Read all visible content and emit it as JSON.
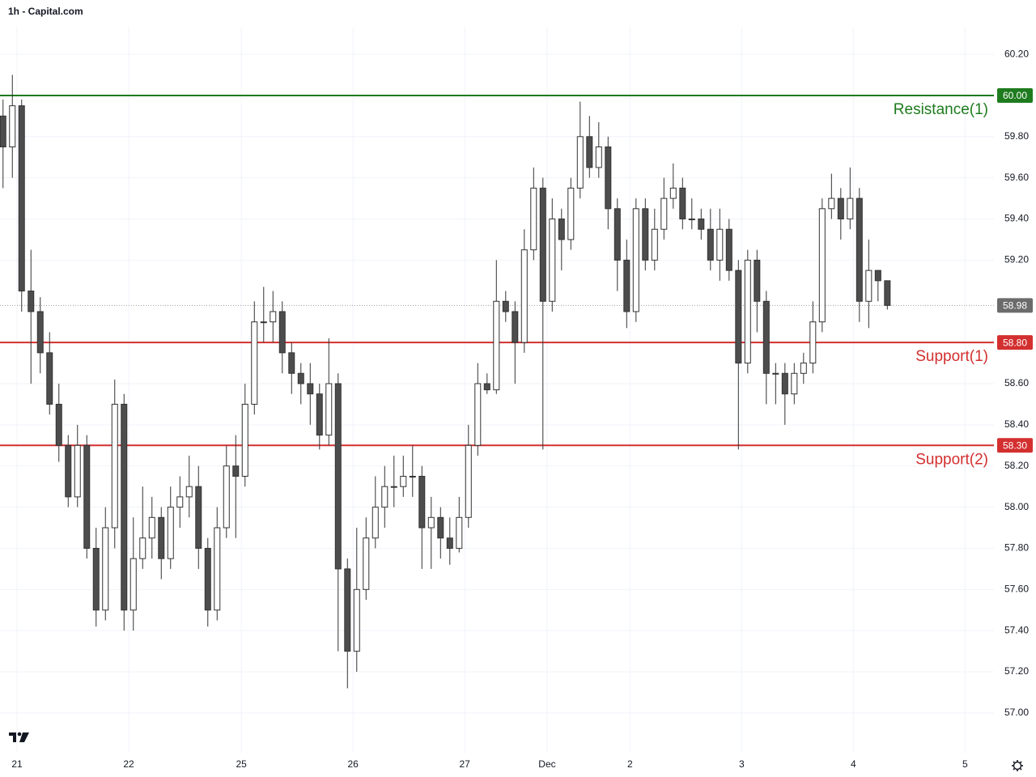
{
  "chart_data": {
    "type": "candlestick",
    "title": "1h - Capital.com",
    "grid": true,
    "up_color": "#ffffff",
    "down_color": "#4d4d4d",
    "wick_color": "#333333",
    "xlim": [
      -3.652,
      209.9
    ],
    "ylim": [
      56.807,
      60.334
    ],
    "xticks": [
      {
        "value": 0,
        "label": "21"
      },
      {
        "value": 24,
        "label": "22"
      },
      {
        "value": 48.2,
        "label": "25"
      },
      {
        "value": 72.2,
        "label": "26"
      },
      {
        "value": 96.2,
        "label": "27"
      },
      {
        "value": 113.9,
        "label": "Dec"
      },
      {
        "value": 131.7,
        "label": "2"
      },
      {
        "value": 155.7,
        "label": "3"
      },
      {
        "value": 179.7,
        "label": "4"
      },
      {
        "value": 203.7,
        "label": "5"
      }
    ],
    "yticks": [
      {
        "value": 57,
        "label": "57.00"
      },
      {
        "value": 57.2,
        "label": "57.20"
      },
      {
        "value": 57.4,
        "label": "57.40"
      },
      {
        "value": 57.6,
        "label": "57.60"
      },
      {
        "value": 57.8,
        "label": "57.80"
      },
      {
        "value": 58,
        "label": "58.00"
      },
      {
        "value": 58.2,
        "label": "58.20"
      },
      {
        "value": 58.4,
        "label": "58.40"
      },
      {
        "value": 58.6,
        "label": "58.60"
      },
      {
        "value": 59.2,
        "label": "59.20"
      },
      {
        "value": 59.4,
        "label": "59.40"
      },
      {
        "value": 59.6,
        "label": "59.60"
      },
      {
        "value": 59.8,
        "label": "59.80"
      },
      {
        "value": 60.2,
        "label": "60.20"
      }
    ],
    "levels": [
      {
        "name": "Resistance(1)",
        "value": 60,
        "label": "60.00",
        "color": "#1e7b1e"
      },
      {
        "name": "Support(1)",
        "value": 58.8,
        "label": "58.80",
        "color": "#d32f2f"
      },
      {
        "name": "Support(2)",
        "value": 58.3,
        "label": "58.30",
        "color": "#d32f2f"
      }
    ],
    "last_price": {
      "value": 58.98,
      "label": "58.98",
      "color": "#6b6b6b"
    },
    "x": [
      -3,
      -1,
      1,
      3,
      5,
      7,
      9,
      11,
      13,
      15,
      17,
      19,
      21,
      23,
      25,
      27,
      29,
      31,
      33,
      35,
      37,
      39,
      41,
      43,
      45,
      47,
      49,
      51,
      53,
      55,
      57,
      59,
      61,
      63,
      65,
      67,
      69,
      71,
      73,
      75,
      77,
      79,
      81,
      83,
      85,
      87,
      89,
      91,
      93,
      95,
      97,
      99,
      101,
      103,
      105,
      107,
      109,
      111,
      113,
      115,
      117,
      119,
      121,
      123,
      125,
      127,
      129,
      131,
      133,
      135,
      137,
      139,
      141,
      143,
      145,
      147,
      149,
      151,
      153,
      155,
      157,
      159,
      161,
      163,
      165,
      167,
      169,
      171,
      173,
      175,
      177,
      179,
      181,
      183,
      185,
      187
    ],
    "open": [
      59.9,
      59.75,
      59.95,
      59.05,
      58.95,
      58.75,
      58.5,
      58.3,
      58.05,
      58.3,
      57.8,
      57.5,
      57.9,
      58.5,
      57.5,
      57.75,
      57.85,
      57.95,
      57.75,
      58.0,
      58.05,
      58.1,
      57.8,
      57.5,
      57.9,
      58.2,
      58.15,
      58.5,
      58.9,
      58.9,
      58.95,
      58.75,
      58.65,
      58.6,
      58.55,
      58.35,
      58.6,
      57.7,
      57.3,
      57.6,
      57.85,
      58.0,
      58.1,
      58.1,
      58.15,
      58.15,
      57.9,
      57.95,
      57.85,
      57.8,
      57.95,
      58.3,
      58.6,
      58.57,
      59.0,
      58.95,
      58.8,
      59.25,
      59.55,
      59.0,
      59.4,
      59.3,
      59.55,
      59.8,
      59.65,
      59.75,
      59.45,
      59.2,
      58.95,
      59.45,
      59.2,
      59.35,
      59.5,
      59.55,
      59.4,
      59.4,
      59.35,
      59.2,
      59.35,
      59.15,
      58.7,
      59.2,
      59.0,
      58.65,
      58.65,
      58.55,
      58.65,
      58.7,
      58.9,
      59.45,
      59.5,
      59.4,
      59.5,
      59.0,
      59.15,
      59.1
    ],
    "high": [
      59.98,
      60.1,
      59.98,
      59.25,
      59.02,
      58.85,
      58.6,
      58.35,
      58.4,
      58.35,
      57.9,
      58.0,
      58.62,
      58.55,
      57.95,
      58.1,
      58.05,
      58.0,
      58.1,
      58.15,
      58.25,
      58.2,
      57.85,
      58.0,
      58.3,
      58.35,
      58.6,
      59.0,
      59.07,
      59.05,
      59.0,
      58.8,
      58.7,
      58.7,
      58.6,
      58.82,
      58.65,
      57.75,
      57.9,
      57.95,
      58.15,
      58.2,
      58.25,
      58.25,
      58.3,
      58.2,
      58.05,
      58.0,
      57.95,
      58.05,
      58.4,
      58.7,
      58.65,
      59.2,
      59.05,
      59.0,
      59.35,
      59.65,
      59.6,
      59.5,
      59.45,
      59.6,
      59.97,
      59.9,
      59.87,
      59.8,
      59.5,
      59.3,
      59.5,
      59.5,
      59.45,
      59.6,
      59.67,
      59.6,
      59.5,
      59.45,
      59.45,
      59.45,
      59.4,
      59.2,
      59.25,
      59.25,
      59.05,
      58.7,
      58.7,
      58.7,
      58.75,
      59.0,
      59.5,
      59.62,
      59.55,
      59.65,
      59.55,
      59.3,
      59.15,
      59.1
    ],
    "low": [
      59.55,
      59.6,
      58.95,
      58.6,
      58.65,
      58.45,
      58.22,
      58.0,
      58.0,
      57.75,
      57.42,
      57.45,
      57.8,
      57.4,
      57.4,
      57.7,
      57.75,
      57.65,
      57.7,
      57.9,
      57.95,
      57.7,
      57.42,
      57.45,
      57.85,
      57.85,
      58.1,
      58.45,
      58.8,
      58.8,
      58.65,
      58.55,
      58.5,
      58.4,
      58.28,
      58.3,
      57.3,
      57.12,
      57.2,
      57.55,
      57.8,
      57.9,
      58.0,
      58.05,
      58.05,
      57.7,
      57.7,
      57.75,
      57.72,
      57.78,
      57.9,
      58.25,
      58.55,
      58.55,
      58.9,
      58.6,
      58.75,
      59.2,
      58.28,
      58.95,
      59.15,
      59.25,
      59.5,
      59.6,
      59.6,
      59.35,
      59.05,
      58.87,
      58.9,
      59.15,
      59.15,
      59.3,
      59.45,
      59.35,
      59.35,
      59.3,
      59.15,
      59.1,
      59.1,
      58.28,
      58.65,
      58.85,
      58.5,
      58.5,
      58.4,
      58.5,
      58.6,
      58.65,
      58.85,
      59.4,
      59.3,
      59.35,
      58.9,
      58.87,
      59.0,
      58.96
    ],
    "close": [
      59.75,
      59.95,
      59.05,
      58.95,
      58.75,
      58.5,
      58.3,
      58.05,
      58.3,
      57.8,
      57.5,
      57.9,
      58.5,
      57.5,
      57.75,
      57.85,
      57.95,
      57.75,
      58.0,
      58.05,
      58.1,
      57.8,
      57.5,
      57.9,
      58.2,
      58.15,
      58.5,
      58.9,
      58.9,
      58.95,
      58.75,
      58.65,
      58.6,
      58.55,
      58.35,
      58.6,
      57.7,
      57.3,
      57.6,
      57.85,
      58.0,
      58.1,
      58.1,
      58.15,
      58.15,
      57.9,
      57.95,
      57.85,
      57.8,
      57.95,
      58.3,
      58.6,
      58.57,
      59.0,
      58.95,
      58.8,
      59.25,
      59.55,
      59.0,
      59.4,
      59.3,
      59.55,
      59.8,
      59.65,
      59.75,
      59.45,
      59.2,
      58.95,
      59.45,
      59.2,
      59.35,
      59.5,
      59.55,
      59.4,
      59.4,
      59.35,
      59.2,
      59.35,
      59.15,
      58.7,
      59.2,
      59.0,
      58.65,
      58.65,
      58.55,
      58.65,
      58.7,
      58.9,
      59.45,
      59.5,
      59.4,
      59.5,
      59.0,
      59.15,
      59.1,
      58.98
    ]
  }
}
